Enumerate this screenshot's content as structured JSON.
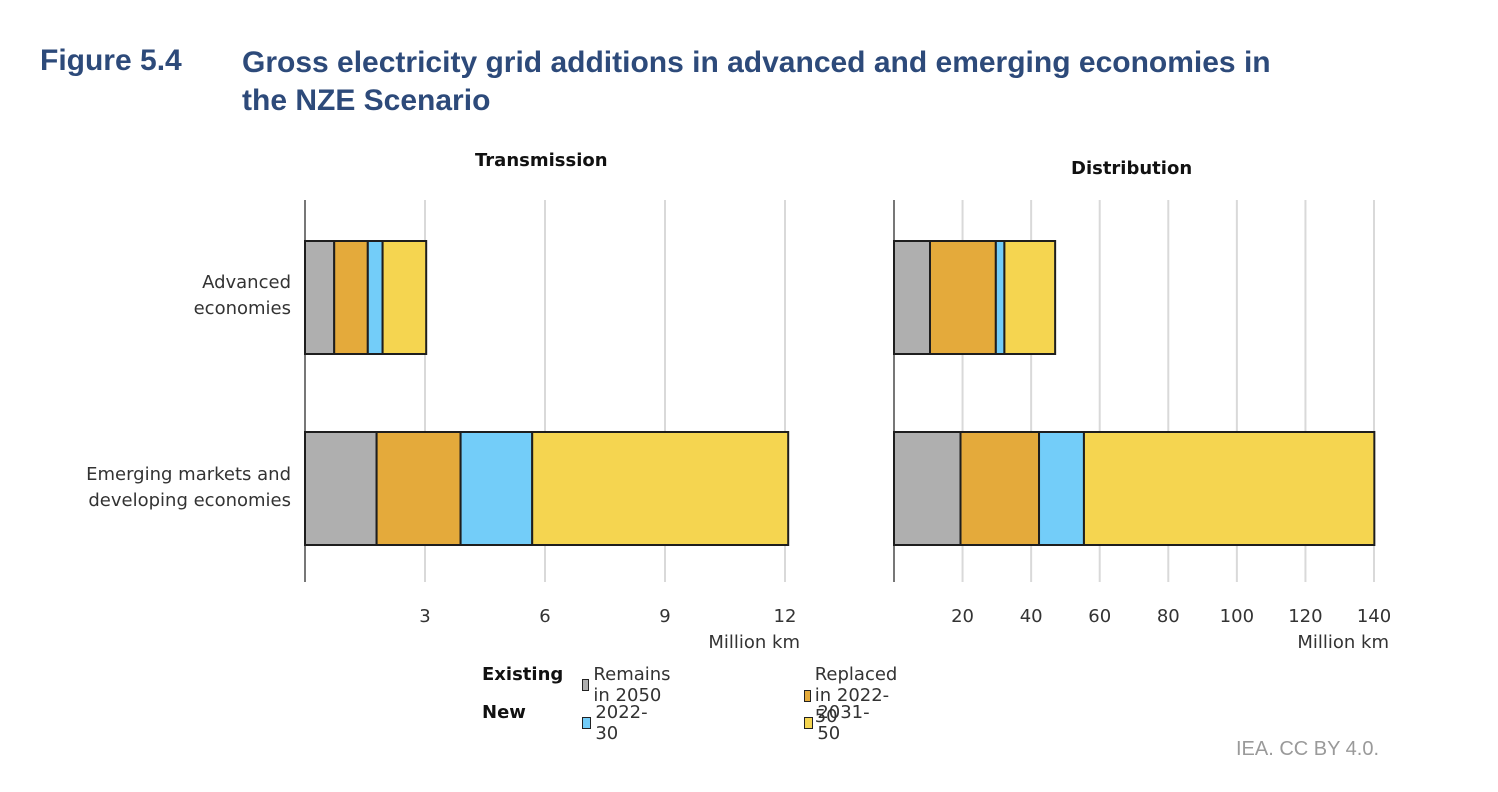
{
  "header": {
    "figure_label": "Figure 5.4",
    "title_line1": "Gross electricity grid additions in advanced and emerging economies in",
    "title_line2": "the NZE Scenario"
  },
  "credit": "IEA. CC BY 4.0.",
  "colors": {
    "remains": "#afafaf",
    "replaced": "#e4aa3b",
    "new_2022_30": "#73cdf9",
    "new_2031_50": "#f5d550",
    "outline": "#1e1e1e",
    "grid": "#d9d9d9",
    "title": "#2d4a7a"
  },
  "chart_data": [
    {
      "type": "bar",
      "orientation": "horizontal",
      "stacked": true,
      "title": "Transmission",
      "xlabel": "Million km",
      "xlim": [
        0,
        12
      ],
      "xticks": [
        3,
        6,
        9,
        12
      ],
      "grid": true,
      "categories": [
        "Advanced economies",
        "Emerging markets and developing economies"
      ],
      "series": [
        {
          "name": "Existing - Remains in 2050",
          "key": "remains",
          "values": [
            0.73,
            1.79
          ]
        },
        {
          "name": "Existing - Replaced in 2022-50",
          "key": "replaced",
          "values": [
            0.84,
            2.1
          ]
        },
        {
          "name": "New - 2022-30",
          "key": "new_2022_30",
          "values": [
            0.37,
            1.79
          ]
        },
        {
          "name": "New - 2031-50",
          "key": "new_2031_50",
          "values": [
            1.09,
            6.4
          ]
        }
      ]
    },
    {
      "type": "bar",
      "orientation": "horizontal",
      "stacked": true,
      "title": "Distribution",
      "xlabel": "Million km",
      "xlim": [
        0,
        140
      ],
      "xticks": [
        20,
        40,
        60,
        80,
        100,
        120,
        140
      ],
      "grid": true,
      "categories": [
        "Advanced economies",
        "Emerging markets and developing economies"
      ],
      "series": [
        {
          "name": "Existing - Remains in 2050",
          "key": "remains",
          "values": [
            10.5,
            19.4
          ]
        },
        {
          "name": "Existing - Replaced in 2022-50",
          "key": "replaced",
          "values": [
            19.2,
            22.9
          ]
        },
        {
          "name": "New - 2022-30",
          "key": "new_2022_30",
          "values": [
            2.5,
            13.1
          ]
        },
        {
          "name": "New - 2031-50",
          "key": "new_2031_50",
          "values": [
            14.8,
            84.7
          ]
        }
      ]
    }
  ],
  "categories_display": [
    {
      "line1": "Advanced",
      "line2": "economies"
    },
    {
      "line1": "Emerging markets and",
      "line2": "developing economies"
    }
  ],
  "legend": {
    "position": "bottom-center",
    "groups": [
      {
        "label": "Existing",
        "items": [
          {
            "label": "Remains in 2050",
            "key": "remains"
          },
          {
            "label": "Replaced in 2022-50",
            "key": "replaced"
          }
        ]
      },
      {
        "label": "New",
        "items": [
          {
            "label": "2022-30",
            "key": "new_2022_30"
          },
          {
            "label": "2031-50",
            "key": "new_2031_50"
          }
        ]
      }
    ]
  }
}
